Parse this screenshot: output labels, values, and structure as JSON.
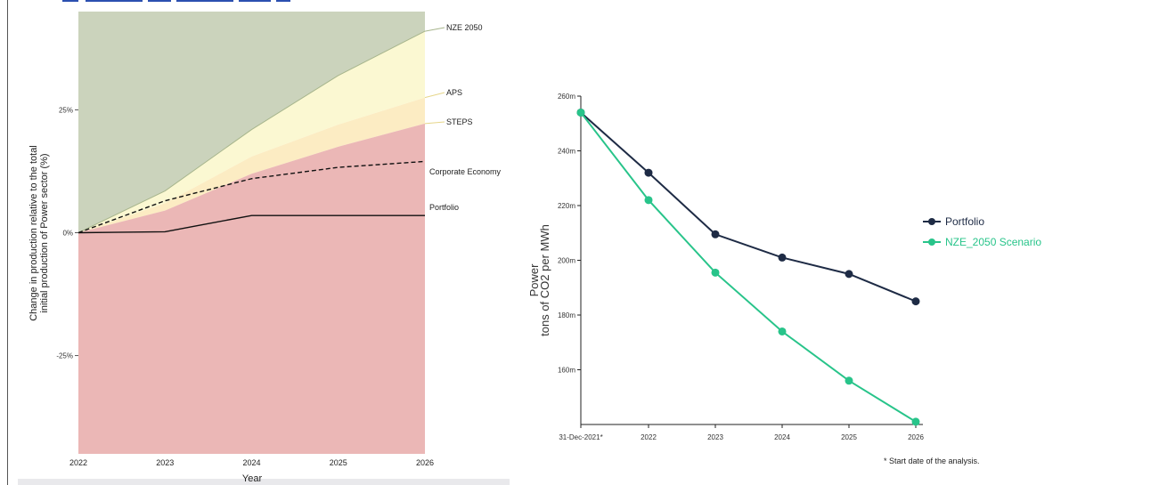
{
  "chart_data": [
    {
      "type": "area",
      "xlabel": "Year",
      "ylabel_lines": [
        "Change in production relative to the total",
        "initial production of Power sector (%)"
      ],
      "x": [
        2022,
        2023,
        2024,
        2025,
        2026
      ],
      "x_tick_labels": [
        "2022",
        "2023",
        "2024",
        "2025",
        "2026"
      ],
      "ylim": [
        -0.45,
        0.45
      ],
      "y_ticks": [
        -0.25,
        0,
        0.25
      ],
      "y_tick_labels": [
        "-25%",
        "0%",
        "25%"
      ],
      "bands": [
        {
          "name": "NZE 2050",
          "values": [
            0,
            0.085,
            0.21,
            0.32,
            0.41
          ],
          "color": "#fbf8d2"
        },
        {
          "name": "APS",
          "values": [
            0,
            0.06,
            0.155,
            0.22,
            0.275
          ],
          "color": "#fcecc3"
        },
        {
          "name": "STEPS",
          "values": [
            0,
            0.045,
            0.12,
            0.175,
            0.222
          ],
          "color": "#f9dfb0"
        }
      ],
      "green_region_color": "#cbd3bc",
      "red_region_color": "#ebb7b6",
      "series": [
        {
          "name": "Corporate Economy",
          "values": [
            0,
            0.065,
            0.11,
            0.133,
            0.145
          ],
          "style": "dashed"
        },
        {
          "name": "Portfolio",
          "values": [
            0,
            0.002,
            0.035,
            0.035,
            0.035
          ],
          "style": "solid"
        }
      ],
      "labels": [
        "NZE 2050",
        "APS",
        "STEPS",
        "Corporate Economy",
        "Portfolio"
      ]
    },
    {
      "type": "line",
      "ylabel_lines": [
        "Power",
        "tons of CO2 per MWh"
      ],
      "categories": [
        "31-Dec-2021*",
        "2022",
        "2023",
        "2024",
        "2025",
        "2026"
      ],
      "ylim": [
        140,
        260
      ],
      "y_ticks": [
        160,
        180,
        200,
        220,
        240,
        260
      ],
      "y_tick_labels": [
        "160m",
        "180m",
        "200m",
        "220m",
        "240m",
        "260m"
      ],
      "series": [
        {
          "name": "Portfolio",
          "values": [
            254,
            232,
            209.5,
            201,
            195,
            185
          ],
          "color": "#1e2b45"
        },
        {
          "name": "NZE_2050 Scenario",
          "values": [
            254,
            222,
            195.5,
            174,
            156,
            141
          ],
          "color": "#28c48a"
        }
      ],
      "footnote": "* Start date of the analysis."
    }
  ]
}
